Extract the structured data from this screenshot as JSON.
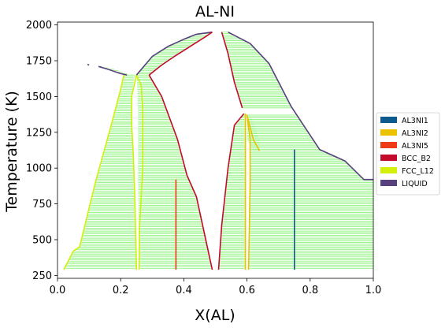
{
  "chart_data": {
    "type": "phase_diagram",
    "title": "AL-NI",
    "xlabel": "X(AL)",
    "ylabel": "Temperature (K)",
    "xlim": [
      0.0,
      1.0
    ],
    "ylim": [
      230,
      2020
    ],
    "x_ticks": [
      0.0,
      0.2,
      0.4,
      0.6,
      0.8,
      1.0
    ],
    "x_tick_labels": [
      "0.0",
      "0.2",
      "0.4",
      "0.6",
      "0.8",
      "1.0"
    ],
    "y_ticks": [
      250,
      500,
      750,
      1000,
      1250,
      1500,
      1750,
      2000
    ],
    "y_tick_labels": [
      "250",
      "500",
      "750",
      "1000",
      "1250",
      "1500",
      "1750",
      "2000"
    ],
    "legend_position": "right",
    "tieline_color": "#7ef26a",
    "tieline_step_K": 10,
    "phases": [
      {
        "name": "AL3NI1",
        "color": "#0c5a8e"
      },
      {
        "name": "AL3NI2",
        "color": "#eac200"
      },
      {
        "name": "AL3NI5",
        "color": "#ee3b14"
      },
      {
        "name": "BCC_B2",
        "color": "#c40a2a"
      },
      {
        "name": "FCC_L12",
        "color": "#d4f00a"
      },
      {
        "name": "LIQUID",
        "color": "#58407e"
      }
    ],
    "tieline_regions": [
      {
        "left": [
          [
            0.02,
            300
          ],
          [
            0.05,
            420
          ],
          [
            0.07,
            450
          ],
          [
            0.12,
            900
          ],
          [
            0.17,
            1300
          ],
          [
            0.2,
            1550
          ],
          [
            0.21,
            1650
          ]
        ],
        "right": [
          [
            0.25,
            300
          ],
          [
            0.245,
            800
          ],
          [
            0.24,
            1100
          ],
          [
            0.235,
            1300
          ],
          [
            0.235,
            1500
          ],
          [
            0.245,
            1650
          ]
        ]
      },
      {
        "left": [
          [
            0.258,
            300
          ],
          [
            0.255,
            1000
          ],
          [
            0.255,
            1400
          ],
          [
            0.252,
            1600
          ],
          [
            0.25,
            1650
          ]
        ],
        "right": [
          [
            0.49,
            300
          ],
          [
            0.44,
            800
          ],
          [
            0.41,
            950
          ],
          [
            0.38,
            1200
          ],
          [
            0.33,
            1500
          ],
          [
            0.29,
            1650
          ]
        ]
      },
      {
        "left": [
          [
            0.51,
            300
          ],
          [
            0.52,
            600
          ],
          [
            0.54,
            1000
          ],
          [
            0.56,
            1300
          ],
          [
            0.59,
            1380
          ]
        ],
        "right": [
          [
            0.595,
            300
          ],
          [
            0.595,
            800
          ],
          [
            0.595,
            1350
          ],
          [
            0.595,
            1380
          ]
        ]
      },
      {
        "left": [
          [
            0.605,
            300
          ],
          [
            0.61,
            900
          ],
          [
            0.61,
            1200
          ],
          [
            0.6,
            1370
          ]
        ],
        "right": [
          [
            1.0,
            300
          ],
          [
            1.0,
            800
          ],
          [
            1.0,
            920
          ],
          [
            0.97,
            920
          ],
          [
            0.91,
            1050
          ],
          [
            0.83,
            1130
          ],
          [
            0.74,
            1430
          ],
          [
            0.67,
            1730
          ],
          [
            0.61,
            1870
          ],
          [
            0.54,
            1940
          ]
        ]
      },
      {
        "left": [
          [
            0.62,
            1120
          ],
          [
            0.6,
            1200
          ],
          [
            0.6,
            1370
          ]
        ],
        "right": [
          [
            0.64,
            1120
          ],
          [
            0.64,
            1200
          ],
          [
            0.61,
            1370
          ]
        ]
      },
      {
        "left": [
          [
            0.25,
            1650
          ],
          [
            0.27,
            1710
          ],
          [
            0.3,
            1780
          ],
          [
            0.35,
            1850
          ],
          [
            0.4,
            1900
          ],
          [
            0.44,
            1935
          ],
          [
            0.49,
            1950
          ]
        ],
        "right": [
          [
            0.29,
            1650
          ],
          [
            0.33,
            1720
          ],
          [
            0.37,
            1780
          ],
          [
            0.42,
            1850
          ],
          [
            0.47,
            1920
          ],
          [
            0.49,
            1950
          ]
        ]
      },
      {
        "left": [
          [
            0.52,
            1950
          ],
          [
            0.54,
            1800
          ],
          [
            0.56,
            1600
          ],
          [
            0.585,
            1420
          ]
        ],
        "right": [
          [
            0.54,
            1950
          ],
          [
            0.61,
            1870
          ],
          [
            0.67,
            1730
          ],
          [
            0.74,
            1430
          ],
          [
            0.76,
            1400
          ]
        ]
      },
      {
        "left": [
          [
            0.13,
            1710
          ],
          [
            0.16,
            1690
          ],
          [
            0.2,
            1660
          ],
          [
            0.22,
            1650
          ]
        ],
        "right": [
          [
            0.14,
            1710
          ],
          [
            0.18,
            1690
          ],
          [
            0.22,
            1660
          ],
          [
            0.24,
            1650
          ]
        ]
      }
    ],
    "phase_boundaries": [
      {
        "phase": "FCC_L12",
        "points": [
          [
            0.02,
            290
          ],
          [
            0.05,
            420
          ],
          [
            0.07,
            450
          ],
          [
            0.12,
            900
          ],
          [
            0.17,
            1300
          ],
          [
            0.2,
            1550
          ],
          [
            0.21,
            1650
          ]
        ]
      },
      {
        "phase": "FCC_L12",
        "points": [
          [
            0.25,
            290
          ],
          [
            0.245,
            800
          ],
          [
            0.24,
            1100
          ],
          [
            0.235,
            1300
          ],
          [
            0.235,
            1500
          ],
          [
            0.25,
            1650
          ],
          [
            0.265,
            1580
          ],
          [
            0.27,
            1400
          ],
          [
            0.27,
            1000
          ],
          [
            0.26,
            600
          ],
          [
            0.258,
            290
          ]
        ]
      },
      {
        "phase": "BCC_B2",
        "points": [
          [
            0.29,
            1650
          ],
          [
            0.33,
            1500
          ],
          [
            0.38,
            1200
          ],
          [
            0.41,
            950
          ],
          [
            0.44,
            800
          ],
          [
            0.49,
            290
          ]
        ]
      },
      {
        "phase": "BCC_B2",
        "points": [
          [
            0.51,
            290
          ],
          [
            0.52,
            600
          ],
          [
            0.54,
            1000
          ],
          [
            0.56,
            1300
          ],
          [
            0.59,
            1380
          ]
        ]
      },
      {
        "phase": "BCC_B2",
        "points": [
          [
            0.52,
            1950
          ],
          [
            0.54,
            1800
          ],
          [
            0.56,
            1600
          ],
          [
            0.585,
            1420
          ]
        ]
      },
      {
        "phase": "AL3NI2",
        "points": [
          [
            0.595,
            290
          ],
          [
            0.595,
            1380
          ]
        ]
      },
      {
        "phase": "AL3NI2",
        "points": [
          [
            0.605,
            290
          ],
          [
            0.61,
            900
          ],
          [
            0.61,
            1200
          ],
          [
            0.6,
            1370
          ],
          [
            0.62,
            1200
          ],
          [
            0.64,
            1120
          ]
        ]
      },
      {
        "phase": "AL3NI5",
        "points": [
          [
            0.375,
            290
          ],
          [
            0.375,
            920
          ]
        ]
      },
      {
        "phase": "AL3NI1",
        "points": [
          [
            0.75,
            290
          ],
          [
            0.75,
            1130
          ]
        ]
      },
      {
        "phase": "LIQUID",
        "points": [
          [
            0.54,
            1950
          ],
          [
            0.61,
            1870
          ],
          [
            0.67,
            1730
          ],
          [
            0.74,
            1430
          ],
          [
            0.83,
            1130
          ],
          [
            0.91,
            1050
          ],
          [
            0.97,
            920
          ],
          [
            1.0,
            920
          ]
        ]
      },
      {
        "phase": "LIQUID",
        "points": [
          [
            0.25,
            1650
          ],
          [
            0.3,
            1780
          ],
          [
            0.35,
            1850
          ],
          [
            0.4,
            1900
          ],
          [
            0.44,
            1935
          ],
          [
            0.49,
            1950
          ]
        ]
      },
      {
        "phase": "LIQUID",
        "points": [
          [
            0.095,
            1725
          ],
          [
            0.1,
            1720
          ]
        ]
      },
      {
        "phase": "LIQUID",
        "points": [
          [
            0.13,
            1710
          ],
          [
            0.16,
            1690
          ],
          [
            0.2,
            1660
          ],
          [
            0.22,
            1650
          ]
        ]
      },
      {
        "phase": "BCC_B2",
        "points": [
          [
            0.29,
            1650
          ],
          [
            0.33,
            1720
          ],
          [
            0.37,
            1780
          ],
          [
            0.42,
            1850
          ],
          [
            0.47,
            1920
          ],
          [
            0.49,
            1950
          ]
        ]
      }
    ]
  }
}
